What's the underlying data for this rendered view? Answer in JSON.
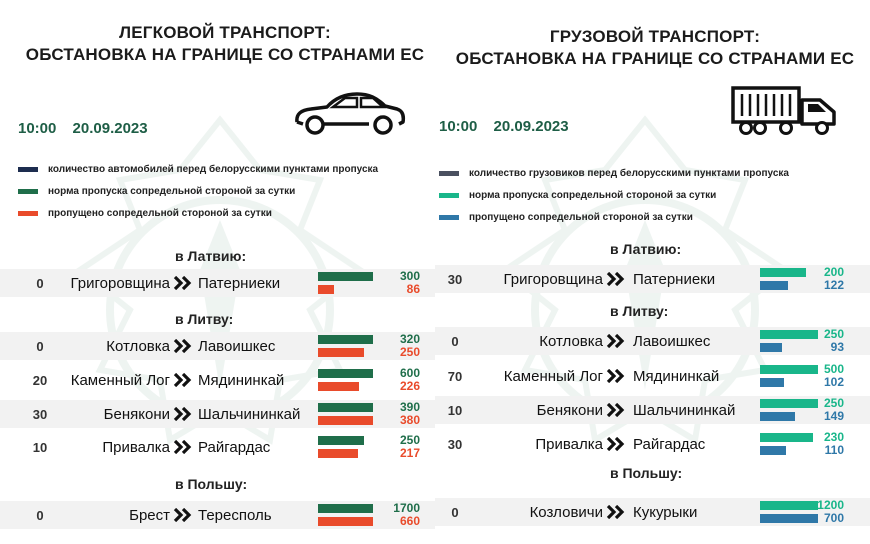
{
  "left": {
    "title_line1": "ЛЕГКОВОЙ ТРАНСПОРТ:",
    "title_line2": "ОБСТАНОВКА НА ГРАНИЦЕ СО СТРАНАМИ ЕС",
    "time": "10:00",
    "date": "20.09.2023",
    "icon": "car-icon",
    "legend": [
      {
        "label": "количество автомобилей перед белорусскими пунктами пропуска",
        "color": "#1d2d4f"
      },
      {
        "label": "норма пропуска сопредельной стороной за сутки",
        "color": "#1f6e4a"
      },
      {
        "label": "пропущено сопредельной стороной за сутки",
        "color": "#e94b2b"
      }
    ],
    "sections": [
      {
        "title": "в Латвию:",
        "rows": [
          {
            "queue": "0",
            "from": "Григоровщина",
            "to": "Патерниеки",
            "norm": 300,
            "passed": 86
          }
        ]
      },
      {
        "title": "в Литву:",
        "rows": [
          {
            "queue": "0",
            "from": "Котловка",
            "to": "Лавоишкес",
            "norm": 320,
            "passed": 250
          },
          {
            "queue": "20",
            "from": "Каменный Лог",
            "to": "Мядининкай",
            "norm": 600,
            "passed": 226
          },
          {
            "queue": "30",
            "from": "Бенякони",
            "to": "Шальчининкай",
            "norm": 390,
            "passed": 380
          },
          {
            "queue": "10",
            "from": "Привалка",
            "to": "Райгардас",
            "norm": 250,
            "passed": 217
          }
        ]
      },
      {
        "title": "в Польшу:",
        "rows": [
          {
            "queue": "0",
            "from": "Брест",
            "to": "Тересполь",
            "norm": 1700,
            "passed": 660
          }
        ]
      }
    ],
    "norm_color": "#1f6e4a",
    "passed_color": "#e94b2b"
  },
  "right": {
    "title_line1": "ГРУЗОВОЙ ТРАНСПОРТ:",
    "title_line2": "ОБСТАНОВКА НА ГРАНИЦЕ СО СТРАНАМИ ЕС",
    "time": "10:00",
    "date": "20.09.2023",
    "icon": "truck-icon",
    "legend": [
      {
        "label": "количество грузовиков перед белорусскими пунктами пропуска",
        "color": "#4a5060"
      },
      {
        "label": "норма пропуска сопредельной стороной за сутки",
        "color": "#19b68a"
      },
      {
        "label": "пропущено сопредельной стороной за сутки",
        "color": "#2f78a8"
      }
    ],
    "sections": [
      {
        "title": "в Латвию:",
        "rows": [
          {
            "queue": "30",
            "from": "Григоровщина",
            "to": "Патерниеки",
            "norm": 200,
            "passed": 122
          }
        ]
      },
      {
        "title": "в Литву:",
        "rows": [
          {
            "queue": "0",
            "from": "Котловка",
            "to": "Лавоишкес",
            "norm": 250,
            "passed": 93
          },
          {
            "queue": "70",
            "from": "Каменный Лог",
            "to": "Мядининкай",
            "norm": 500,
            "passed": 102
          },
          {
            "queue": "10",
            "from": "Бенякони",
            "to": "Шальчининкай",
            "norm": 250,
            "passed": 149
          },
          {
            "queue": "30",
            "from": "Привалка",
            "to": "Райгардас",
            "norm": 230,
            "passed": 110
          }
        ]
      },
      {
        "title": "в Польшу:",
        "rows": [
          {
            "queue": "0",
            "from": "Козловичи",
            "to": "Кукурыки",
            "norm": 1200,
            "passed": 700
          }
        ]
      }
    ],
    "norm_color": "#19b68a",
    "passed_color": "#2f78a8"
  },
  "watermark_text": "ПОГРАНИЧНАЯ СЛУЖБА РЕСПУБЛИКИ БЕЛАРУСЬ"
}
